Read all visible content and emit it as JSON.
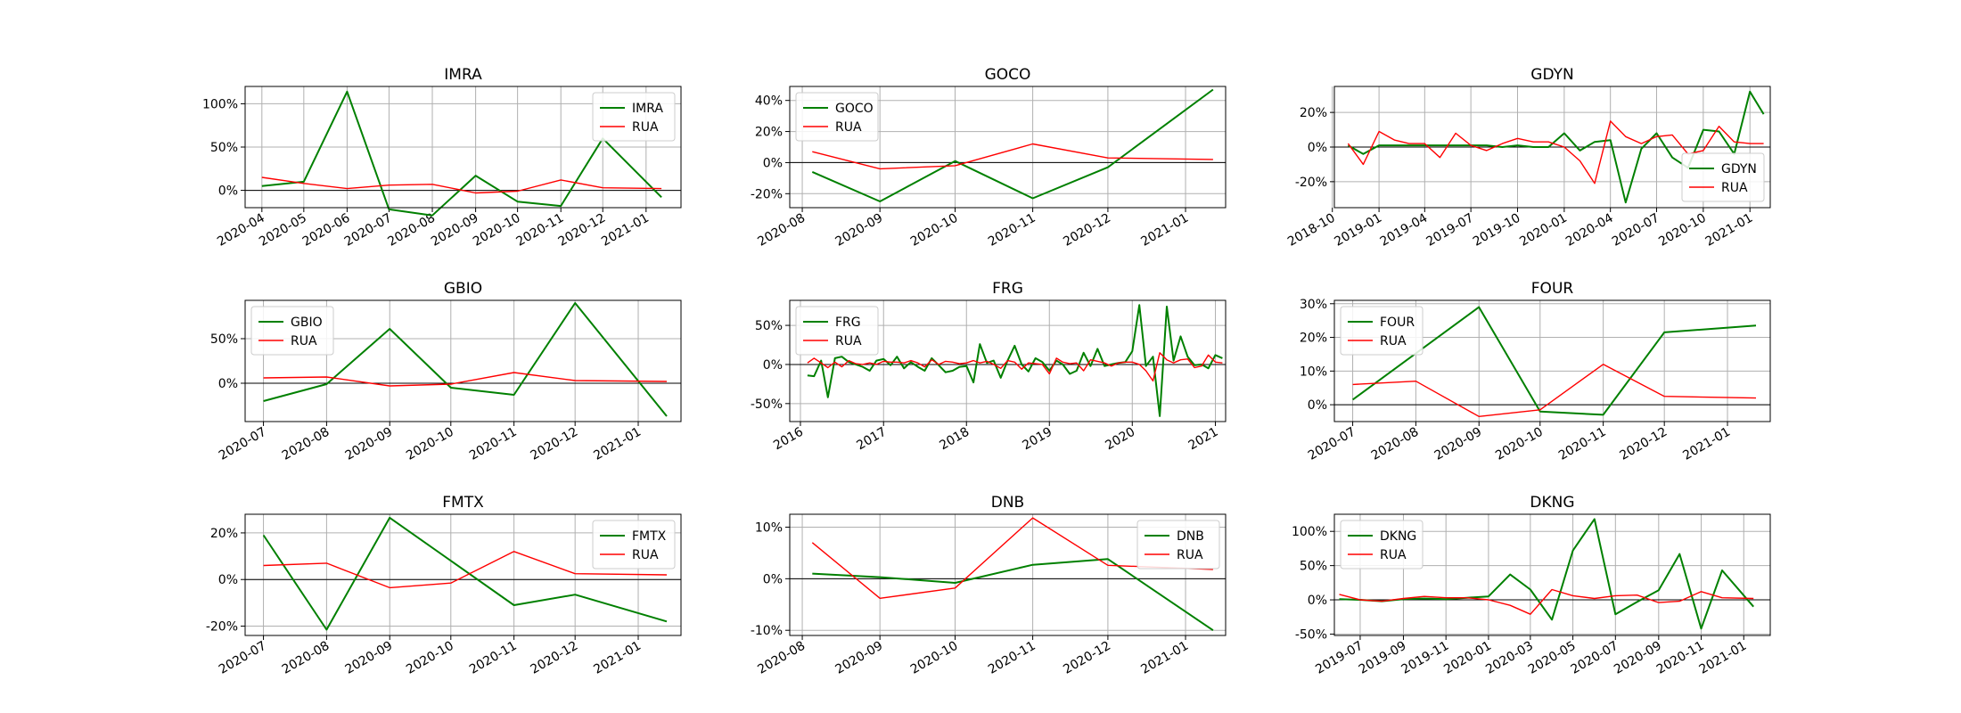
{
  "colors": {
    "stock": "#008000",
    "benchmark": "#ff0000",
    "grid": "#b0b0b0",
    "zero": "#000000"
  },
  "chart_data": [
    {
      "type": "line",
      "title": "IMRA",
      "legend": "top-right",
      "x_dates": [
        "2020-04-01",
        "2020-05-01",
        "2020-06-01",
        "2020-07-01",
        "2020-08-01",
        "2020-09-01",
        "2020-10-01",
        "2020-11-01",
        "2020-12-01",
        "2021-01-01"
      ],
      "xlim": [
        "2020-03-20",
        "2021-01-26"
      ],
      "xticks": [
        "2020-04",
        "2020-05",
        "2020-06",
        "2020-07",
        "2020-08",
        "2020-09",
        "2020-10",
        "2020-11",
        "2020-12",
        "2021-01"
      ],
      "ylim": [
        -20,
        120
      ],
      "yticks": [
        0,
        50,
        100
      ],
      "ytick_labels": [
        "0%",
        "50%",
        "100%"
      ],
      "series": [
        {
          "name": "IMRA",
          "x": [
            "2020-04-01",
            "2020-05-01",
            "2020-06-01",
            "2020-07-01",
            "2020-08-01",
            "2020-09-01",
            "2020-10-01",
            "2020-11-01",
            "2020-12-01",
            "2021-01-12"
          ],
          "values": [
            5,
            10,
            114,
            -22,
            -29,
            17,
            -13,
            -18,
            60,
            -8
          ]
        },
        {
          "name": "RUA",
          "x": [
            "2020-04-01",
            "2020-05-01",
            "2020-06-01",
            "2020-07-01",
            "2020-08-01",
            "2020-09-01",
            "2020-10-01",
            "2020-11-01",
            "2020-12-01",
            "2021-01-12"
          ],
          "values": [
            15,
            8,
            2,
            6,
            7,
            -3,
            -1,
            12,
            3,
            2
          ]
        }
      ]
    },
    {
      "type": "line",
      "title": "GOCO",
      "legend": "top-left",
      "xlim": [
        "2020-07-27",
        "2021-01-17"
      ],
      "xticks": [
        "2020-08",
        "2020-09",
        "2020-10",
        "2020-11",
        "2020-12",
        "2021-01"
      ],
      "ylim": [
        -29,
        49
      ],
      "yticks": [
        -20,
        0,
        20,
        40
      ],
      "ytick_labels": [
        "-20%",
        "0%",
        "20%",
        "40%"
      ],
      "series": [
        {
          "name": "GOCO",
          "x": [
            "2020-08-05",
            "2020-09-01",
            "2020-10-01",
            "2020-11-01",
            "2020-12-01",
            "2021-01-12"
          ],
          "values": [
            -6,
            -25,
            1,
            -23,
            -3,
            47
          ]
        },
        {
          "name": "RUA",
          "x": [
            "2020-08-05",
            "2020-09-01",
            "2020-10-01",
            "2020-11-01",
            "2020-12-01",
            "2021-01-12"
          ],
          "values": [
            7,
            -4,
            -2,
            12,
            3,
            2
          ]
        }
      ]
    },
    {
      "type": "line",
      "title": "GDYN",
      "legend": "bottom-right",
      "xlim": [
        "2018-10-05",
        "2021-02-10"
      ],
      "xticks": [
        "2018-10",
        "2019-01",
        "2019-04",
        "2019-07",
        "2019-10",
        "2020-01",
        "2020-04",
        "2020-07",
        "2020-10",
        "2021-01"
      ],
      "ylim": [
        -35,
        35
      ],
      "yticks": [
        -20,
        0,
        20
      ],
      "ytick_labels": [
        "-20%",
        "0%",
        "20%"
      ],
      "series": [
        {
          "name": "GDYN",
          "x": [
            "2018-11-01",
            "2018-12-01",
            "2019-01-01",
            "2019-02-01",
            "2019-03-01",
            "2019-04-01",
            "2019-05-01",
            "2019-06-01",
            "2019-07-01",
            "2019-08-01",
            "2019-09-01",
            "2019-10-01",
            "2019-11-01",
            "2019-12-01",
            "2020-01-01",
            "2020-02-01",
            "2020-03-01",
            "2020-04-01",
            "2020-05-01",
            "2020-06-01",
            "2020-07-01",
            "2020-08-01",
            "2020-09-01",
            "2020-10-01",
            "2020-11-01",
            "2020-12-01",
            "2021-01-01",
            "2021-01-28"
          ],
          "values": [
            1,
            -4,
            1,
            1,
            1,
            1,
            1,
            1,
            1,
            1,
            0,
            1,
            0,
            0,
            8,
            -2,
            3,
            4,
            -32,
            -1,
            8,
            -6,
            -12,
            10,
            9,
            -4,
            32,
            19
          ]
        },
        {
          "name": "RUA",
          "x": [
            "2018-11-01",
            "2018-12-01",
            "2019-01-01",
            "2019-02-01",
            "2019-03-01",
            "2019-04-01",
            "2019-05-01",
            "2019-06-01",
            "2019-07-01",
            "2019-08-01",
            "2019-09-01",
            "2019-10-01",
            "2019-11-01",
            "2019-12-01",
            "2020-01-01",
            "2020-02-01",
            "2020-03-01",
            "2020-04-01",
            "2020-05-01",
            "2020-06-01",
            "2020-07-01",
            "2020-08-01",
            "2020-09-01",
            "2020-10-01",
            "2020-11-01",
            "2020-12-01",
            "2021-01-01",
            "2021-01-28"
          ],
          "values": [
            2,
            -10,
            9,
            4,
            2,
            2,
            -6,
            8,
            1,
            -2,
            2,
            5,
            3,
            3,
            0,
            -8,
            -21,
            15,
            6,
            2,
            6,
            7,
            -4,
            -2,
            12,
            3,
            2,
            2
          ]
        }
      ]
    },
    {
      "type": "line",
      "title": "GBIO",
      "legend": "top-left",
      "xlim": [
        "2020-06-22",
        "2021-01-22"
      ],
      "xticks": [
        "2020-07",
        "2020-08",
        "2020-09",
        "2020-10",
        "2020-11",
        "2020-12",
        "2021-01"
      ],
      "ylim": [
        -43,
        93
      ],
      "yticks": [
        0,
        50
      ],
      "ytick_labels": [
        "0%",
        "50%"
      ],
      "series": [
        {
          "name": "GBIO",
          "x": [
            "2020-07-01",
            "2020-08-01",
            "2020-09-01",
            "2020-10-01",
            "2020-11-01",
            "2020-12-01",
            "2021-01-15"
          ],
          "values": [
            -20,
            -1,
            61,
            -5,
            -13,
            90,
            -37
          ]
        },
        {
          "name": "RUA",
          "x": [
            "2020-07-01",
            "2020-08-01",
            "2020-09-01",
            "2020-10-01",
            "2020-11-01",
            "2020-12-01",
            "2021-01-15"
          ],
          "values": [
            6,
            7,
            -3,
            -1,
            12,
            3,
            2
          ]
        }
      ]
    },
    {
      "type": "line",
      "title": "FRG",
      "legend": "top-left",
      "xlim": [
        "2015-11-15",
        "2021-02-15"
      ],
      "xticks": [
        "2016",
        "2017",
        "2018",
        "2019",
        "2020",
        "2021"
      ],
      "ylim": [
        -73,
        82
      ],
      "yticks": [
        -50,
        0,
        50
      ],
      "ytick_labels": [
        "-50%",
        "0%",
        "50%"
      ],
      "x_start": "2016-02-01",
      "x_step_months": 1,
      "series": [
        {
          "name": "FRG",
          "values": [
            -14,
            -15,
            5,
            -42,
            8,
            10,
            3,
            0,
            -3,
            -8,
            5,
            7,
            -1,
            10,
            -5,
            3,
            -3,
            -8,
            8,
            -1,
            -10,
            -8,
            -3,
            -2,
            -23,
            26,
            2,
            5,
            -17,
            5,
            24,
            0,
            -9,
            8,
            3,
            -8,
            5,
            0,
            -12,
            -8,
            15,
            -2,
            20,
            -2,
            0,
            2,
            3,
            17,
            76,
            -2,
            10,
            -66,
            74,
            5,
            36,
            10,
            -1,
            0,
            -5,
            12,
            8
          ]
        },
        {
          "name": "RUA",
          "values": [
            2,
            8,
            2,
            -4,
            3,
            -3,
            5,
            1,
            0,
            2,
            0,
            4,
            3,
            3,
            2,
            5,
            2,
            -3,
            6,
            0,
            4,
            3,
            1,
            2,
            5,
            2,
            4,
            0,
            -5,
            5,
            3,
            -6,
            2,
            1,
            0,
            -12,
            8,
            3,
            1,
            2,
            -8,
            6,
            4,
            2,
            -2,
            2,
            3,
            3,
            0,
            -8,
            -21,
            15,
            6,
            2,
            6,
            7,
            -4,
            -2,
            12,
            3,
            2
          ]
        }
      ]
    },
    {
      "type": "line",
      "title": "FOUR",
      "legend": "top-left",
      "xlim": [
        "2020-06-22",
        "2021-01-22"
      ],
      "xticks": [
        "2020-07",
        "2020-08",
        "2020-09",
        "2020-10",
        "2020-11",
        "2020-12",
        "2021-01"
      ],
      "ylim": [
        -5,
        31
      ],
      "yticks": [
        0,
        10,
        20,
        30
      ],
      "ytick_labels": [
        "0%",
        "10%",
        "20%",
        "30%"
      ],
      "series": [
        {
          "name": "FOUR",
          "x": [
            "2020-07-01",
            "2020-09-01",
            "2020-10-01",
            "2020-11-01",
            "2020-12-01",
            "2021-01-15"
          ],
          "values": [
            1.5,
            29,
            -2,
            -3,
            21.5,
            23.5
          ]
        },
        {
          "name": "RUA",
          "x": [
            "2020-07-01",
            "2020-08-01",
            "2020-09-01",
            "2020-10-01",
            "2020-11-01",
            "2020-12-01",
            "2021-01-15"
          ],
          "values": [
            6,
            7,
            -3.5,
            -1.5,
            12,
            2.5,
            2
          ]
        }
      ]
    },
    {
      "type": "line",
      "title": "FMTX",
      "legend": "top-right",
      "xlim": [
        "2020-06-22",
        "2021-01-22"
      ],
      "xticks": [
        "2020-07",
        "2020-08",
        "2020-09",
        "2020-10",
        "2020-11",
        "2020-12",
        "2021-01"
      ],
      "ylim": [
        -24,
        28
      ],
      "yticks": [
        -20,
        0,
        20
      ],
      "ytick_labels": [
        "-20%",
        "0%",
        "20%"
      ],
      "series": [
        {
          "name": "FMTX",
          "x": [
            "2020-07-01",
            "2020-08-01",
            "2020-09-01",
            "2020-11-01",
            "2020-12-01",
            "2021-01-15"
          ],
          "values": [
            19,
            -21.5,
            26.5,
            -11,
            -6.5,
            -18
          ]
        },
        {
          "name": "RUA",
          "x": [
            "2020-07-01",
            "2020-08-01",
            "2020-09-01",
            "2020-10-01",
            "2020-11-01",
            "2020-12-01",
            "2021-01-15"
          ],
          "values": [
            6,
            7,
            -3.5,
            -1.5,
            12,
            2.5,
            2
          ]
        }
      ]
    },
    {
      "type": "line",
      "title": "DNB",
      "legend": "top-right",
      "xlim": [
        "2020-07-27",
        "2021-01-17"
      ],
      "xticks": [
        "2020-08",
        "2020-09",
        "2020-10",
        "2020-11",
        "2020-12",
        "2021-01"
      ],
      "ylim": [
        -11,
        12.5
      ],
      "yticks": [
        -10,
        0,
        10
      ],
      "ytick_labels": [
        "-10%",
        "0%",
        "10%"
      ],
      "series": [
        {
          "name": "DNB",
          "x": [
            "2020-08-05",
            "2020-09-01",
            "2020-10-01",
            "2020-11-01",
            "2020-12-01",
            "2021-01-12"
          ],
          "values": [
            1,
            0.3,
            -0.8,
            2.7,
            3.8,
            -10
          ]
        },
        {
          "name": "RUA",
          "x": [
            "2020-08-05",
            "2020-09-01",
            "2020-10-01",
            "2020-11-01",
            "2020-12-01",
            "2021-01-12"
          ],
          "values": [
            7,
            -3.8,
            -1.8,
            11.8,
            2.6,
            1.8
          ]
        }
      ]
    },
    {
      "type": "line",
      "title": "DKNG",
      "legend": "top-left",
      "xlim": [
        "2019-05-25",
        "2021-02-08"
      ],
      "xticks": [
        "2019-07",
        "2019-09",
        "2019-11",
        "2020-01",
        "2020-03",
        "2020-05",
        "2020-07",
        "2020-09",
        "2020-11",
        "2021-01"
      ],
      "ylim": [
        -52,
        125
      ],
      "yticks": [
        -50,
        0,
        50,
        100
      ],
      "ytick_labels": [
        "-50%",
        "0%",
        "50%",
        "100%"
      ],
      "series": [
        {
          "name": "DKNG",
          "x": [
            "2019-06-01",
            "2019-07-01",
            "2019-08-01",
            "2019-09-01",
            "2019-10-01",
            "2019-11-01",
            "2019-12-01",
            "2020-01-01",
            "2020-02-01",
            "2020-03-01",
            "2020-04-01",
            "2020-05-01",
            "2020-06-01",
            "2020-07-01",
            "2020-08-01",
            "2020-09-01",
            "2020-10-01",
            "2020-11-01",
            "2020-12-01",
            "2021-01-15"
          ],
          "values": [
            1,
            0,
            -2,
            1,
            2,
            1,
            3,
            5,
            37,
            15,
            -29,
            72,
            118,
            -21,
            -3,
            14,
            67,
            -42,
            43,
            -10
          ]
        },
        {
          "name": "RUA",
          "x": [
            "2019-06-01",
            "2019-07-01",
            "2019-08-01",
            "2019-09-01",
            "2019-10-01",
            "2019-11-01",
            "2019-12-01",
            "2020-01-01",
            "2020-02-01",
            "2020-03-01",
            "2020-04-01",
            "2020-05-01",
            "2020-06-01",
            "2020-07-01",
            "2020-08-01",
            "2020-09-01",
            "2020-10-01",
            "2020-11-01",
            "2020-12-01",
            "2021-01-15"
          ],
          "values": [
            8,
            0,
            -2,
            2,
            5,
            3,
            3,
            0,
            -8,
            -21,
            15,
            6,
            2,
            6,
            7,
            -4,
            -2,
            12,
            3,
            2
          ]
        }
      ]
    }
  ]
}
